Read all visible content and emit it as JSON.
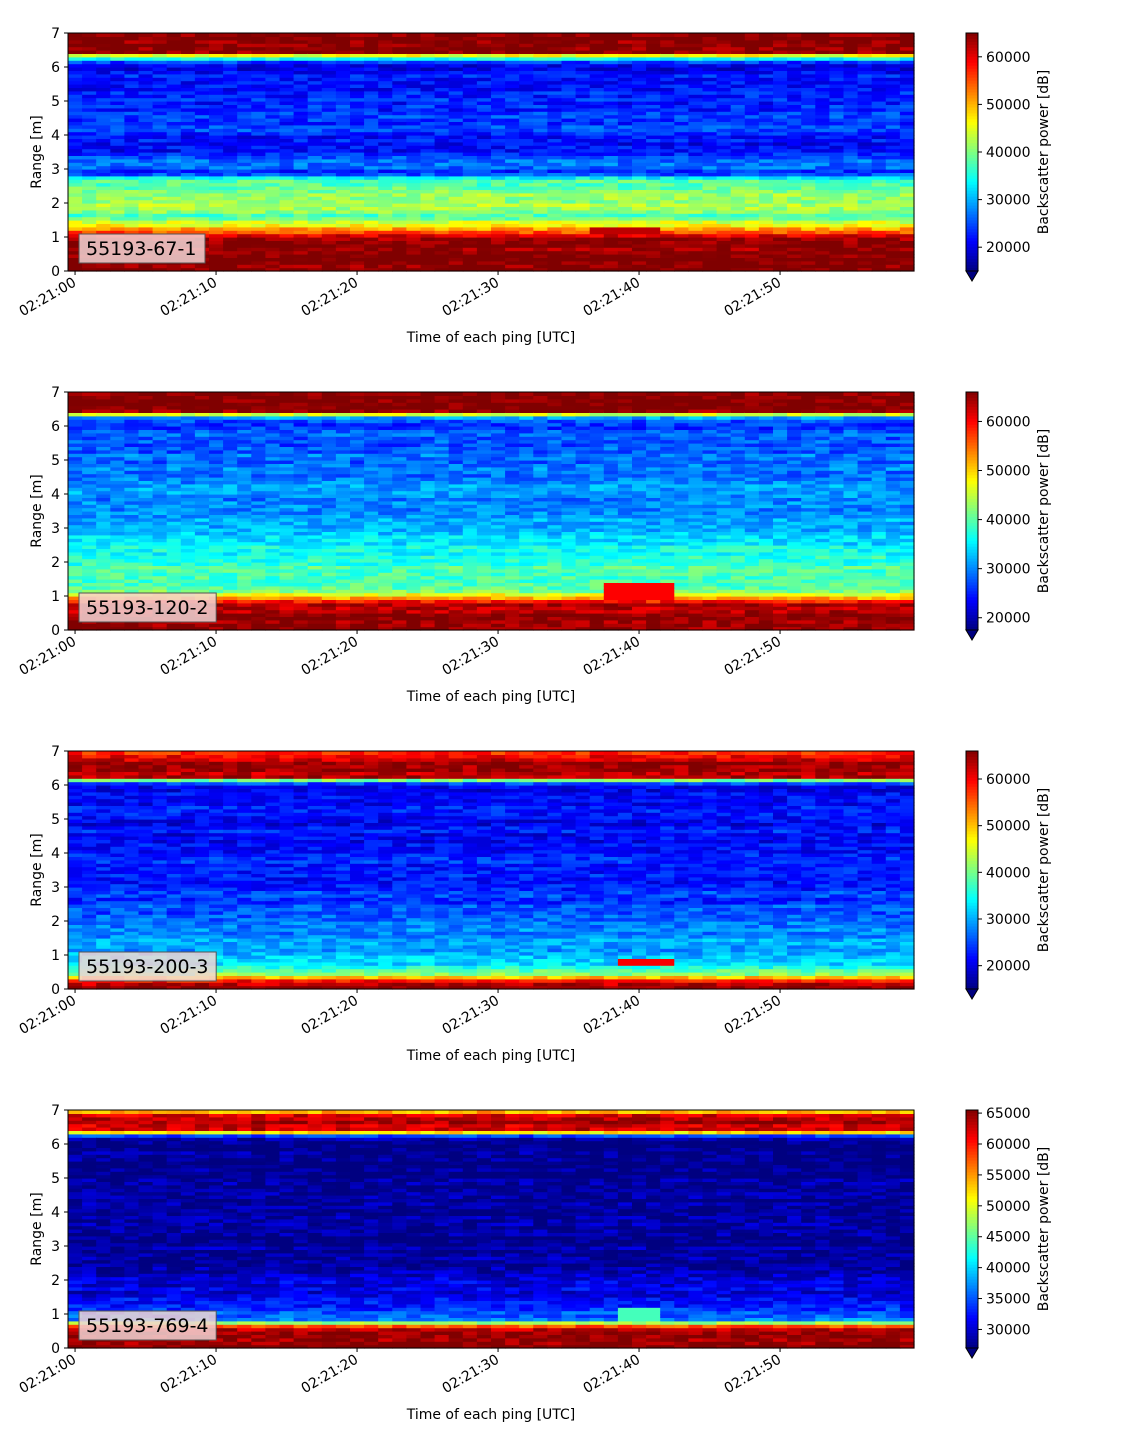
{
  "chart_data": [
    {
      "type": "heatmap",
      "label": "55193-67-1",
      "xlabel": "Time of each ping [UTC]",
      "ylabel": "Range [m]",
      "colorbar_label": "Backscatter power [dB]",
      "colormap": "jet",
      "xlim": [
        "02:20:59.5",
        "02:21:59.5"
      ],
      "ylim": [
        0,
        7
      ],
      "yticks": [
        0,
        1,
        2,
        3,
        4,
        5,
        6,
        7
      ],
      "xticks": [
        "02:21:00",
        "02:21:10",
        "02:21:20",
        "02:21:30",
        "02:21:40",
        "02:21:50"
      ],
      "clim": [
        15000,
        65000
      ],
      "cbar_ticks": [
        20000,
        30000,
        40000,
        50000,
        60000
      ],
      "cbar_extend": "min",
      "range_profile": [
        {
          "range": 0.0,
          "value": 65000
        },
        {
          "range": 0.2,
          "value": 65000
        },
        {
          "range": 0.9,
          "value": 64000
        },
        {
          "range": 1.1,
          "value": 58000
        },
        {
          "range": 1.25,
          "value": 50000
        },
        {
          "range": 1.4,
          "value": 46000
        },
        {
          "range": 1.6,
          "value": 38000
        },
        {
          "range": 2.0,
          "value": 42000
        },
        {
          "range": 2.4,
          "value": 40000
        },
        {
          "range": 2.7,
          "value": 36000
        },
        {
          "range": 2.9,
          "value": 22000
        },
        {
          "range": 3.2,
          "value": 29000
        },
        {
          "range": 3.6,
          "value": 20000
        },
        {
          "range": 4.2,
          "value": 24000
        },
        {
          "range": 5.0,
          "value": 23000
        },
        {
          "range": 6.1,
          "value": 21000
        },
        {
          "range": 6.3,
          "value": 38000
        },
        {
          "range": 6.45,
          "value": 65000
        },
        {
          "range": 7.0,
          "value": 65000
        }
      ],
      "features": [
        {
          "time_start": "02:21:37",
          "time_end": "02:21:41",
          "range_min": 1.1,
          "range_max": 1.3,
          "value": 62000
        }
      ]
    },
    {
      "type": "heatmap",
      "label": "55193-120-2",
      "xlabel": "Time of each ping [UTC]",
      "ylabel": "Range [m]",
      "colorbar_label": "Backscatter power [dB]",
      "colormap": "jet",
      "xlim": [
        "02:20:59.5",
        "02:21:59.5"
      ],
      "ylim": [
        0,
        7
      ],
      "yticks": [
        0,
        1,
        2,
        3,
        4,
        5,
        6,
        7
      ],
      "xticks": [
        "02:21:00",
        "02:21:10",
        "02:21:20",
        "02:21:30",
        "02:21:40",
        "02:21:50"
      ],
      "clim": [
        17500,
        66000
      ],
      "cbar_ticks": [
        20000,
        30000,
        40000,
        50000,
        60000
      ],
      "cbar_extend": "min",
      "range_profile": [
        {
          "range": 0.0,
          "value": 66000
        },
        {
          "range": 0.2,
          "value": 66000
        },
        {
          "range": 0.8,
          "value": 64000
        },
        {
          "range": 0.95,
          "value": 52000
        },
        {
          "range": 1.2,
          "value": 40000
        },
        {
          "range": 2.0,
          "value": 38000
        },
        {
          "range": 2.7,
          "value": 34000
        },
        {
          "range": 3.5,
          "value": 31000
        },
        {
          "range": 4.5,
          "value": 30000
        },
        {
          "range": 5.5,
          "value": 28000
        },
        {
          "range": 6.2,
          "value": 26000
        },
        {
          "range": 6.3,
          "value": 36000
        },
        {
          "range": 6.45,
          "value": 66000
        },
        {
          "range": 7.0,
          "value": 66000
        }
      ],
      "features": [
        {
          "time_start": "02:21:38",
          "time_end": "02:21:42",
          "range_min": 0.9,
          "range_max": 1.35,
          "value": 60000
        }
      ]
    },
    {
      "type": "heatmap",
      "label": "55193-200-3",
      "xlabel": "Time of each ping [UTC]",
      "ylabel": "Range [m]",
      "colorbar_label": "Backscatter power [dB]",
      "colormap": "jet",
      "xlim": [
        "02:20:59.5",
        "02:21:59.5"
      ],
      "ylim": [
        0,
        7
      ],
      "yticks": [
        0,
        1,
        2,
        3,
        4,
        5,
        6,
        7
      ],
      "xticks": [
        "02:21:00",
        "02:21:10",
        "02:21:20",
        "02:21:30",
        "02:21:40",
        "02:21:50"
      ],
      "clim": [
        15000,
        66000
      ],
      "cbar_ticks": [
        20000,
        30000,
        40000,
        50000,
        60000
      ],
      "cbar_extend": "min",
      "range_profile": [
        {
          "range": 0.0,
          "value": 66000
        },
        {
          "range": 0.15,
          "value": 64000
        },
        {
          "range": 0.3,
          "value": 56000
        },
        {
          "range": 0.45,
          "value": 42000
        },
        {
          "range": 0.7,
          "value": 34000
        },
        {
          "range": 1.2,
          "value": 30000
        },
        {
          "range": 2.0,
          "value": 26000
        },
        {
          "range": 3.0,
          "value": 23000
        },
        {
          "range": 4.5,
          "value": 22000
        },
        {
          "range": 6.0,
          "value": 21000
        },
        {
          "range": 6.1,
          "value": 30000
        },
        {
          "range": 6.25,
          "value": 62000
        },
        {
          "range": 6.7,
          "value": 64000
        },
        {
          "range": 7.0,
          "value": 55000
        }
      ],
      "features": [
        {
          "time_start": "02:21:39",
          "time_end": "02:21:42",
          "range_min": 0.75,
          "range_max": 0.9,
          "value": 60000
        }
      ]
    },
    {
      "type": "heatmap",
      "label": "55193-769-4",
      "xlabel": "Time of each ping [UTC]",
      "ylabel": "Range [m]",
      "colorbar_label": "Backscatter power [dB]",
      "colormap": "jet",
      "xlim": [
        "02:20:59.5",
        "02:21:59.5"
      ],
      "ylim": [
        0,
        7
      ],
      "yticks": [
        0,
        1,
        2,
        3,
        4,
        5,
        6,
        7
      ],
      "xticks": [
        "02:21:00",
        "02:21:10",
        "02:21:20",
        "02:21:30",
        "02:21:40",
        "02:21:50"
      ],
      "clim": [
        27000,
        65500
      ],
      "cbar_ticks": [
        30000,
        35000,
        40000,
        45000,
        50000,
        55000,
        60000,
        65000
      ],
      "cbar_extend": "min",
      "range_profile": [
        {
          "range": 0.0,
          "value": 65500
        },
        {
          "range": 0.25,
          "value": 65000
        },
        {
          "range": 0.6,
          "value": 64000
        },
        {
          "range": 0.72,
          "value": 50000
        },
        {
          "range": 0.85,
          "value": 38000
        },
        {
          "range": 1.1,
          "value": 33000
        },
        {
          "range": 2.0,
          "value": 30000
        },
        {
          "range": 3.0,
          "value": 28000
        },
        {
          "range": 6.2,
          "value": 27500
        },
        {
          "range": 6.3,
          "value": 42000
        },
        {
          "range": 6.4,
          "value": 62000
        },
        {
          "range": 6.8,
          "value": 64000
        },
        {
          "range": 7.0,
          "value": 52000
        }
      ],
      "features": [
        {
          "time_start": "02:21:39",
          "time_end": "02:21:41",
          "range_min": 0.85,
          "range_max": 1.25,
          "value": 44000
        }
      ]
    }
  ]
}
